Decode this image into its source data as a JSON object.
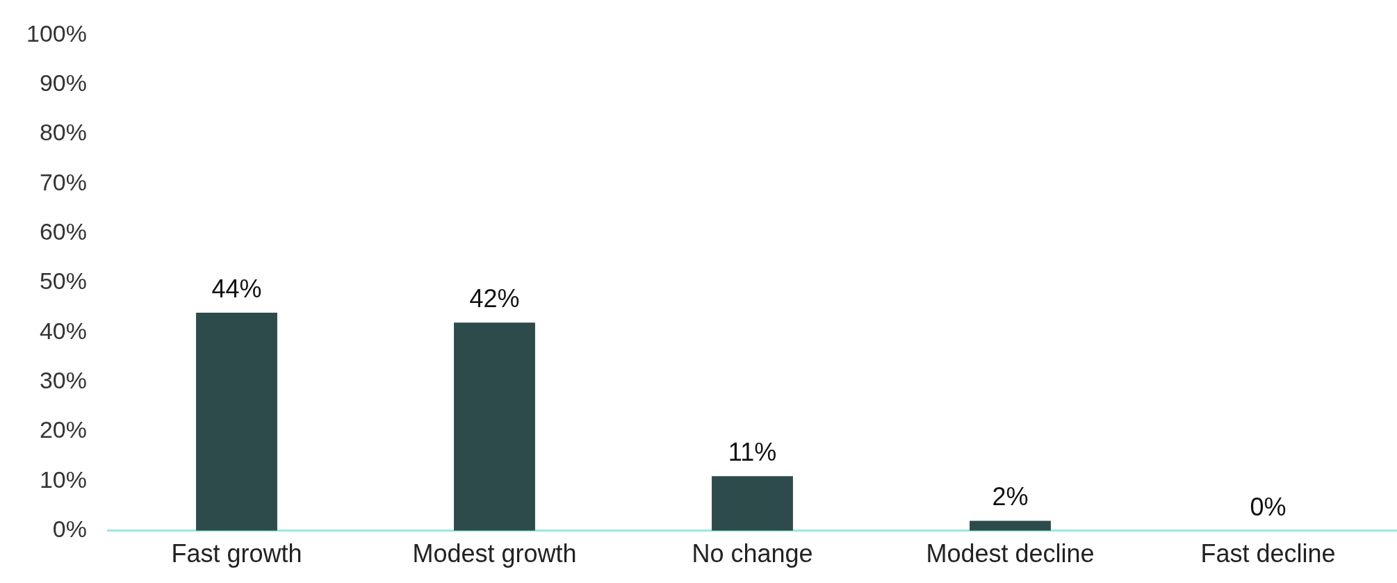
{
  "chart_data": {
    "type": "bar",
    "categories": [
      "Fast growth",
      "Modest growth",
      "No change",
      "Modest decline",
      "Fast decline"
    ],
    "values": [
      44,
      42,
      11,
      2,
      0
    ],
    "value_labels": [
      "44%",
      "42%",
      "11%",
      "2%",
      "0%"
    ],
    "color": "#2e4b4b",
    "ylim": [
      0,
      100
    ],
    "yticks": [
      {
        "value": 0,
        "label": "0%"
      },
      {
        "value": 10,
        "label": "10%"
      },
      {
        "value": 20,
        "label": "20%"
      },
      {
        "value": 30,
        "label": "30%"
      },
      {
        "value": 40,
        "label": "40%"
      },
      {
        "value": 50,
        "label": "50%"
      },
      {
        "value": 60,
        "label": "60%"
      },
      {
        "value": 70,
        "label": "70%"
      },
      {
        "value": 80,
        "label": "80%"
      },
      {
        "value": 90,
        "label": "90%"
      },
      {
        "value": 100,
        "label": "100%"
      }
    ],
    "grid": false,
    "legend": false
  }
}
